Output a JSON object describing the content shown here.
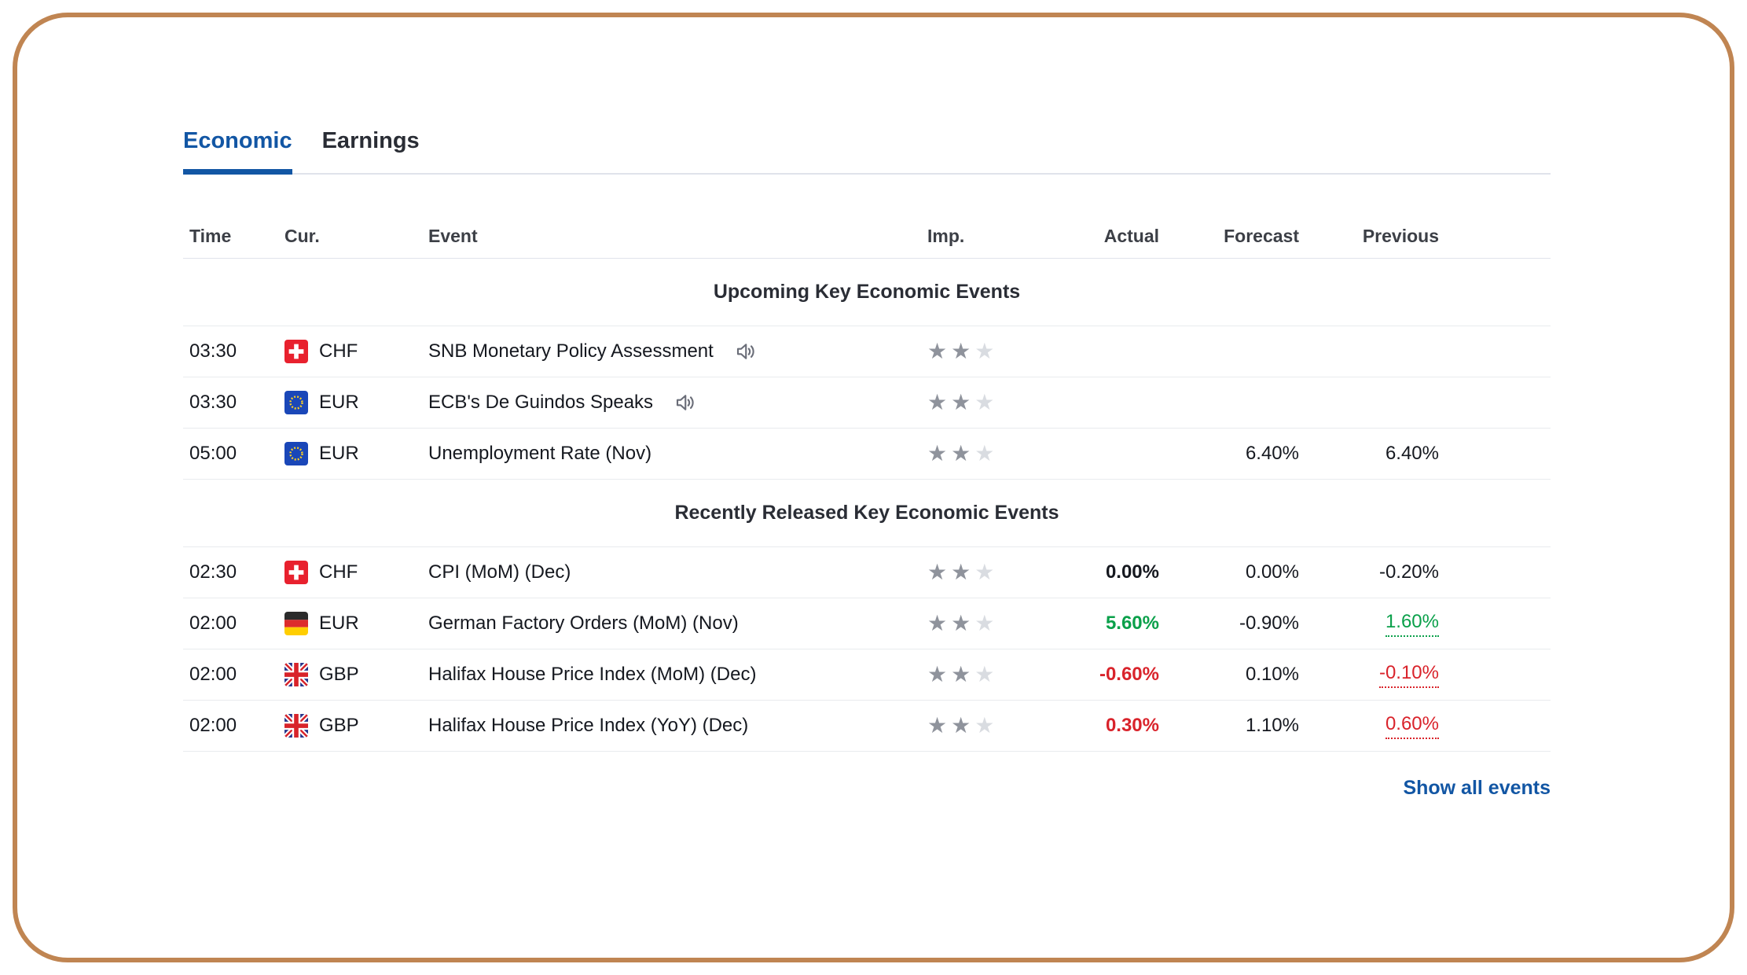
{
  "colors": {
    "blue": "#1256a4",
    "green": "#0aa04a",
    "red": "#d9232b",
    "frame": "#c08552",
    "star-filled": "#8f939c",
    "star-empty": "#d9dce1",
    "text": "#15181f",
    "heading": "#2a2d35",
    "divider": "#e9ebee",
    "divider-strong": "#e0e3eb",
    "icon": "#6a6d78"
  },
  "tabs": [
    {
      "label": "Economic",
      "active": true
    },
    {
      "label": "Earnings",
      "active": false
    }
  ],
  "table": {
    "columns": [
      "Time",
      "Cur.",
      "Event",
      "Imp.",
      "Actual",
      "Forecast",
      "Previous"
    ],
    "sections": [
      {
        "title": "Upcoming Key Economic Events",
        "rows": [
          {
            "time": "03:30",
            "currency": "CHF",
            "flag": "ch",
            "event": "SNB Monetary Policy Assessment",
            "speaker": true,
            "importance": {
              "filled": 2,
              "total": 3
            },
            "actual": {
              "text": "",
              "color": "neutral",
              "bold": false
            },
            "forecast": "",
            "previous": {
              "text": "",
              "color": "neutral",
              "underlined": false
            }
          },
          {
            "time": "03:30",
            "currency": "EUR",
            "flag": "eu",
            "event": "ECB's De Guindos Speaks",
            "speaker": true,
            "importance": {
              "filled": 2,
              "total": 3
            },
            "actual": {
              "text": "",
              "color": "neutral",
              "bold": false
            },
            "forecast": "",
            "previous": {
              "text": "",
              "color": "neutral",
              "underlined": false
            }
          },
          {
            "time": "05:00",
            "currency": "EUR",
            "flag": "eu",
            "event": "Unemployment Rate  (Nov)",
            "speaker": false,
            "importance": {
              "filled": 2,
              "total": 3
            },
            "actual": {
              "text": "",
              "color": "neutral",
              "bold": false
            },
            "forecast": "6.40%",
            "previous": {
              "text": "6.40%",
              "color": "neutral",
              "underlined": false
            }
          }
        ]
      },
      {
        "title": "Recently Released Key Economic Events",
        "rows": [
          {
            "time": "02:30",
            "currency": "CHF",
            "flag": "ch",
            "event": "CPI (MoM) (Dec)",
            "speaker": false,
            "importance": {
              "filled": 2,
              "total": 3
            },
            "actual": {
              "text": "0.00%",
              "color": "neutral",
              "bold": true
            },
            "forecast": "0.00%",
            "previous": {
              "text": "-0.20%",
              "color": "neutral",
              "underlined": false
            }
          },
          {
            "time": "02:00",
            "currency": "EUR",
            "flag": "de",
            "event": "German Factory Orders (MoM) (Nov)",
            "speaker": false,
            "importance": {
              "filled": 2,
              "total": 3
            },
            "actual": {
              "text": "5.60%",
              "color": "green",
              "bold": true
            },
            "forecast": "-0.90%",
            "previous": {
              "text": "1.60%",
              "color": "green",
              "underlined": true
            }
          },
          {
            "time": "02:00",
            "currency": "GBP",
            "flag": "gb",
            "event": "Halifax House Price Index (MoM) (Dec)",
            "speaker": false,
            "importance": {
              "filled": 2,
              "total": 3
            },
            "actual": {
              "text": "-0.60%",
              "color": "red",
              "bold": true
            },
            "forecast": "0.10%",
            "previous": {
              "text": "-0.10%",
              "color": "red",
              "underlined": true
            }
          },
          {
            "time": "02:00",
            "currency": "GBP",
            "flag": "gb",
            "event": "Halifax House Price Index (YoY) (Dec)",
            "speaker": false,
            "importance": {
              "filled": 2,
              "total": 3
            },
            "actual": {
              "text": "0.30%",
              "color": "red",
              "bold": true
            },
            "forecast": "1.10%",
            "previous": {
              "text": "0.60%",
              "color": "red",
              "underlined": true
            }
          }
        ]
      }
    ]
  },
  "show_all": {
    "label": "Show all events"
  }
}
